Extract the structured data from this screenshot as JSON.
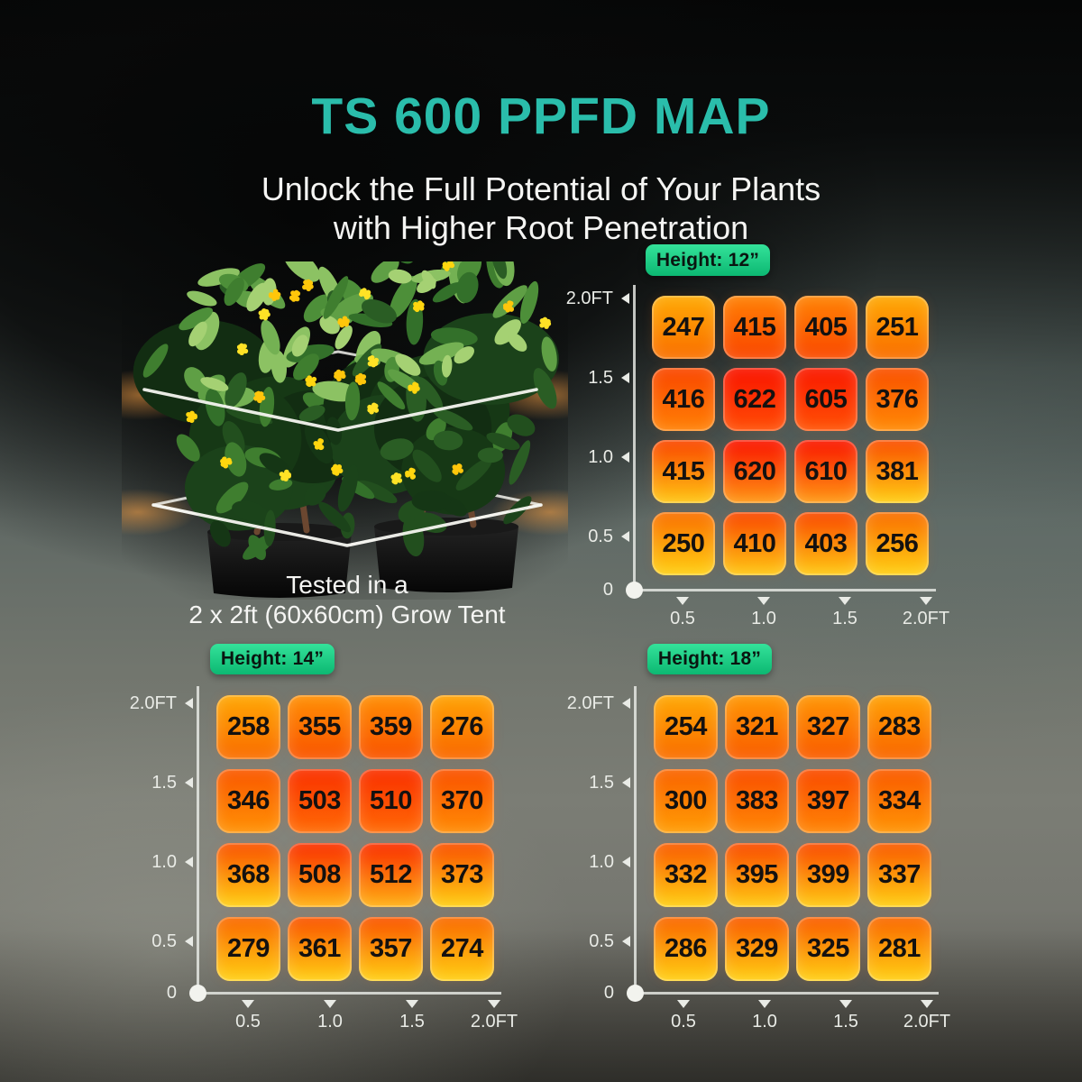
{
  "title": "TS 600 PPFD MAP",
  "subtitle_line1": "Unlock the Full Potential of Your Plants",
  "subtitle_line2": "with Higher Root Penetration",
  "plant_caption_line1": "Tested in a",
  "plant_caption_line2": "2 x 2ft (60x60cm) Grow Tent",
  "colors": {
    "accent_teal": "#2ABDAB",
    "badge_green_top": "#34E29A",
    "badge_green_bottom": "#0CB872",
    "axis_text": "#E9EBE6",
    "cell_text": "#141110",
    "heading_text": "#F5F5F3",
    "heat_low": "#FFC400",
    "heat_mid": "#FF7300",
    "heat_high": "#FF1E00"
  },
  "chart_data": [
    {
      "type": "heatmap",
      "title": "Height: 12”",
      "x_ticks": [
        "0.5",
        "1.0",
        "1.5",
        "2.0FT"
      ],
      "y_ticks": [
        "2.0FT",
        "1.5",
        "1.0",
        "0.5",
        "0"
      ],
      "rows": [
        [
          247,
          415,
          405,
          251
        ],
        [
          416,
          622,
          605,
          376
        ],
        [
          415,
          620,
          610,
          381
        ],
        [
          250,
          410,
          403,
          256
        ]
      ]
    },
    {
      "type": "heatmap",
      "title": "Height: 14”",
      "x_ticks": [
        "0.5",
        "1.0",
        "1.5",
        "2.0FT"
      ],
      "y_ticks": [
        "2.0FT",
        "1.5",
        "1.0",
        "0.5",
        "0"
      ],
      "rows": [
        [
          258,
          355,
          359,
          276
        ],
        [
          346,
          503,
          510,
          370
        ],
        [
          368,
          508,
          512,
          373
        ],
        [
          279,
          361,
          357,
          274
        ]
      ]
    },
    {
      "type": "heatmap",
      "title": "Height: 18”",
      "x_ticks": [
        "0.5",
        "1.0",
        "1.5",
        "2.0FT"
      ],
      "y_ticks": [
        "2.0FT",
        "1.5",
        "1.0",
        "0.5",
        "0"
      ],
      "rows": [
        [
          254,
          321,
          327,
          283
        ],
        [
          300,
          383,
          397,
          334
        ],
        [
          332,
          395,
          399,
          337
        ],
        [
          286,
          329,
          325,
          281
        ]
      ]
    }
  ]
}
